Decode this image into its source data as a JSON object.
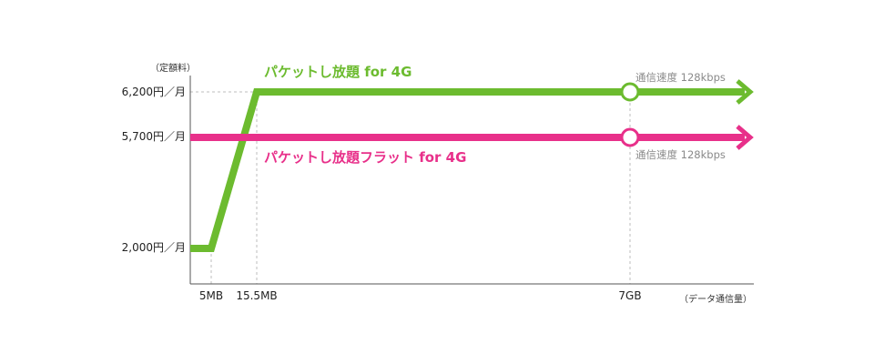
{
  "chart_data": {
    "type": "line",
    "ylabel": "（定額料）",
    "xlabel": "（データ通信量）",
    "x_tick_labels": [
      "5MB",
      "15.5MB",
      "7GB"
    ],
    "y_tick_labels": [
      "6,200円／月",
      "5,700円／月",
      "2,000円／月"
    ],
    "y_values": [
      6200,
      5700,
      2000
    ],
    "series": [
      {
        "name": "パケットし放題 for 4G",
        "color": "#6cbb2f",
        "points": [
          {
            "x": "0",
            "y": 2000
          },
          {
            "x": "5MB",
            "y": 2000
          },
          {
            "x": "15.5MB",
            "y": 6200
          },
          {
            "x": "7GB",
            "y": 6200
          }
        ],
        "marker_at": "7GB",
        "note": "通信速度 128kbps"
      },
      {
        "name": "パケットし放題フラット for 4G",
        "color": "#e8308a",
        "points": [
          {
            "x": "0",
            "y": 5700
          },
          {
            "x": "7GB",
            "y": 5700
          }
        ],
        "marker_at": "7GB",
        "note": "通信速度 128kbps"
      }
    ]
  }
}
